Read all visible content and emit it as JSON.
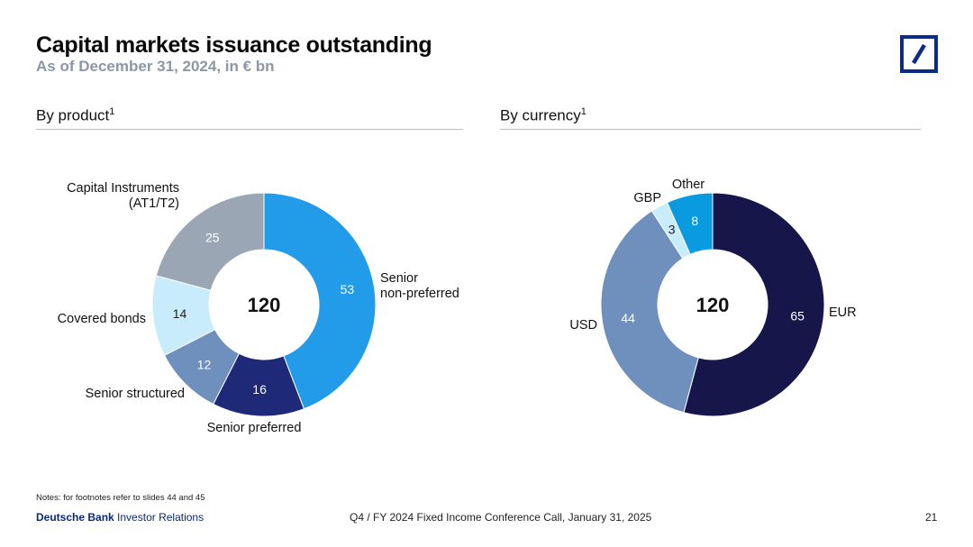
{
  "header": {
    "title": "Capital markets issuance outstanding",
    "subtitle": "As of December 31, 2024, in € bn"
  },
  "sections": {
    "left": {
      "label": "By product",
      "footnote": "1"
    },
    "right": {
      "label": "By currency",
      "footnote": "1"
    }
  },
  "chart_data": [
    {
      "type": "pie",
      "variant": "donut",
      "title": "By product",
      "total": "120",
      "categories": [
        "Senior non-preferred",
        "Senior preferred",
        "Senior structured",
        "Covered bonds",
        "Capital Instruments (AT1/T2)"
      ],
      "values": [
        53,
        16,
        12,
        14,
        25
      ],
      "labels": [
        [
          "Senior",
          "non-preferred"
        ],
        [
          "Senior preferred"
        ],
        [
          "Senior structured"
        ],
        [
          "Covered bonds"
        ],
        [
          "Capital Instruments",
          "(AT1/T2)"
        ]
      ],
      "colors": [
        "#229be8",
        "#1e2a78",
        "#6f8fbd",
        "#c8ecfb",
        "#9aa6b3"
      ],
      "value_colors": [
        "#ffffff",
        "#ffffff",
        "#ffffff",
        "#222222",
        "#ffffff"
      ]
    },
    {
      "type": "pie",
      "variant": "donut",
      "title": "By currency",
      "total": "120",
      "categories": [
        "EUR",
        "USD",
        "GBP",
        "Other"
      ],
      "values": [
        65,
        44,
        3,
        8
      ],
      "labels": [
        [
          "EUR"
        ],
        [
          "USD"
        ],
        [
          "GBP"
        ],
        [
          "Other"
        ]
      ],
      "colors": [
        "#17164a",
        "#6f8fbd",
        "#c8ecfb",
        "#0a9ae0"
      ],
      "value_colors": [
        "#ffffff",
        "#ffffff",
        "#222222",
        "#ffffff"
      ]
    }
  ],
  "notes": "Notes: for footnotes refer to slides 44 and 45",
  "footer": {
    "brand_bold": "Deutsche Bank",
    "brand_rest": "Investor Relations",
    "center": "Q4 / FY 2024 Fixed Income Conference Call, January 31, 2025",
    "page": "21"
  },
  "logo": {
    "icon": "deutsche-bank-logo-icon",
    "color": "#0b2a8a"
  }
}
